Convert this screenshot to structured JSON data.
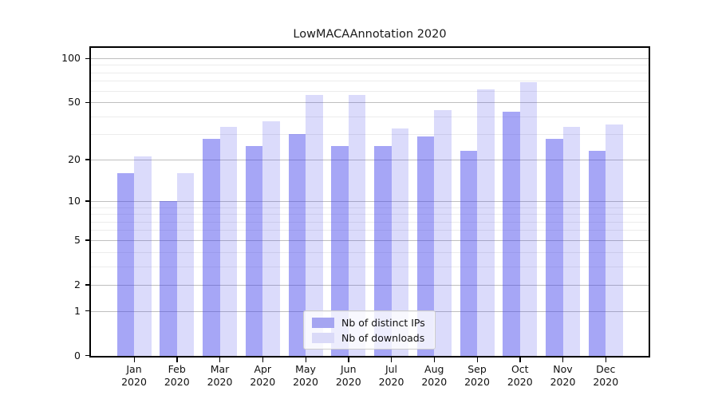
{
  "title": "LowMACAAnnotation 2020",
  "chart_data": {
    "type": "bar",
    "title": "LowMACAAnnotation 2020",
    "categories": [
      "Jan",
      "Feb",
      "Mar",
      "Apr",
      "May",
      "Jun",
      "Jul",
      "Aug",
      "Sep",
      "Oct",
      "Nov",
      "Dec"
    ],
    "category_year": "2020",
    "series": [
      {
        "name": "Nb of distinct IPs",
        "values": [
          16,
          10,
          28,
          25,
          30,
          25,
          25,
          29,
          23,
          43,
          28,
          23
        ],
        "color": "#a5a5f1",
        "fill": "rgba(62,62,235,0.46)"
      },
      {
        "name": "Nb of downloads",
        "values": [
          21,
          16,
          34,
          37,
          56,
          56,
          33,
          44,
          61,
          69,
          34,
          35
        ],
        "color": "#dadaf8",
        "fill": "rgba(62,62,235,0.19)"
      }
    ],
    "xlabel": "",
    "ylabel": "",
    "y_scale": "log1p",
    "ylim": [
      0,
      118
    ],
    "y_ticks": [
      0,
      1,
      2,
      5,
      10,
      20,
      50,
      100
    ],
    "y_tick_labels": [
      "0",
      "1",
      "2",
      "5",
      "10",
      "20",
      "50",
      "100"
    ],
    "y_minor_ticks": [
      3,
      4,
      6,
      7,
      8,
      9,
      30,
      40,
      60,
      70,
      80,
      90
    ],
    "grid": "horizontal",
    "legend_position": "lower center",
    "colors": {
      "major_grid": "#bfbfbf",
      "minor_grid": "#ececec",
      "spine": "#000000"
    }
  }
}
